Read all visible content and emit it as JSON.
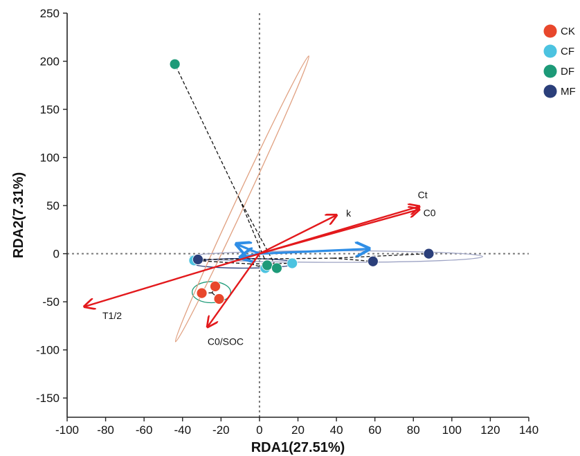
{
  "chart_data": {
    "type": "scatter",
    "xlabel": "RDA1(27.51%)",
    "ylabel": "RDA2(7.31%)",
    "xlim": [
      -100,
      140
    ],
    "ylim": [
      -170,
      250
    ],
    "xticks": [
      -100,
      -80,
      -60,
      -40,
      -20,
      0,
      20,
      40,
      60,
      80,
      100,
      120,
      140
    ],
    "yticks": [
      -150,
      -100,
      -50,
      0,
      50,
      100,
      150,
      200,
      250
    ],
    "grid": false,
    "zero_lines": "dotted",
    "legend_position": "top-right",
    "series": [
      {
        "name": "CK",
        "color": "#e8472c",
        "points": [
          [
            -30,
            -41
          ],
          [
            -23,
            -34
          ],
          [
            -21,
            -47
          ]
        ]
      },
      {
        "name": "CF",
        "color": "#4cc3e0",
        "points": [
          [
            -34,
            -7
          ],
          [
            3,
            -15
          ],
          [
            17,
            -10
          ]
        ]
      },
      {
        "name": "DF",
        "color": "#1d9a78",
        "points": [
          [
            -44,
            197
          ],
          [
            4,
            -12
          ],
          [
            9,
            -15
          ]
        ]
      },
      {
        "name": "MF",
        "color": "#2b3f7a",
        "points": [
          [
            -32,
            -6
          ],
          [
            59,
            -8
          ],
          [
            88,
            0
          ]
        ]
      }
    ],
    "ellipses": [
      {
        "group": "CK",
        "color": "#1d9a78",
        "center": [
          -25,
          -40
        ],
        "rx": 10,
        "ry": 11,
        "angle": 0
      },
      {
        "group": "CF",
        "color": "#2b3f7a",
        "center": [
          -8,
          -10
        ],
        "rx": 27,
        "ry": 5,
        "angle": 0
      },
      {
        "group": "DF",
        "color": "#e0a080",
        "center": [
          -9,
          57
        ],
        "rx": 82,
        "ry": 5,
        "angle": 65
      },
      {
        "group": "MF",
        "color": "#9da3c4",
        "center": [
          40,
          -3
        ],
        "rx": 76,
        "ry": 6,
        "angle": 0
      }
    ],
    "red_arrows": [
      {
        "label": "Ct",
        "end": [
          83,
          49
        ]
      },
      {
        "label": "C0",
        "end": [
          83,
          46
        ]
      },
      {
        "label": "k",
        "end": [
          40,
          40
        ]
      },
      {
        "label": "T1/2",
        "end": [
          -91,
          -55
        ]
      },
      {
        "label": "C0/SOC",
        "end": [
          -27,
          -76
        ]
      }
    ],
    "blue_arrows": [
      {
        "end": [
          57,
          5
        ]
      },
      {
        "end": [
          -12,
          10
        ]
      },
      {
        "end": [
          -10,
          -4
        ]
      }
    ]
  },
  "legend": {
    "items": [
      {
        "label": "CK",
        "color": "#e8472c"
      },
      {
        "label": "CF",
        "color": "#4cc3e0"
      },
      {
        "label": "DF",
        "color": "#1d9a78"
      },
      {
        "label": "MF",
        "color": "#2b3f7a"
      }
    ]
  }
}
